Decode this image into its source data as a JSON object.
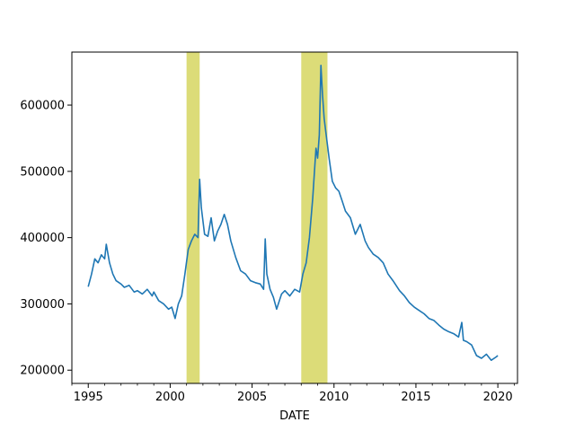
{
  "chart_data": {
    "type": "line",
    "title": "",
    "xlabel": "DATE",
    "ylabel": "",
    "xlim": [
      1994.0,
      2021.2
    ],
    "ylim": [
      180000,
      680000
    ],
    "grid": false,
    "legend": "none",
    "x_ticks": [
      1995,
      2000,
      2005,
      2010,
      2015,
      2020
    ],
    "x_tick_labels": [
      "1995",
      "2000",
      "2005",
      "2010",
      "2015",
      "2020"
    ],
    "x_minor_ticks": [
      1994,
      1996,
      1997,
      1998,
      1999,
      2001,
      2002,
      2003,
      2004,
      2006,
      2007,
      2008,
      2009,
      2011,
      2012,
      2013,
      2014,
      2016,
      2017,
      2018,
      2019,
      2021
    ],
    "y_ticks": [
      200000,
      300000,
      400000,
      500000,
      600000
    ],
    "y_tick_labels": [
      "200000",
      "300000",
      "400000",
      "500000",
      "600000"
    ],
    "line_color": "#1f77b4",
    "recession_color": "#dcdc78",
    "recession_bands": [
      {
        "start": 2001.0,
        "end": 2001.8
      },
      {
        "start": 2008.0,
        "end": 2009.6
      }
    ],
    "series": [
      {
        "x": [
          1995.0,
          1995.2,
          1995.4,
          1995.6,
          1995.8,
          1996.0,
          1996.1,
          1996.3,
          1996.5,
          1996.7,
          1997.0,
          1997.2,
          1997.5,
          1997.8,
          1998.0,
          1998.3,
          1998.6,
          1998.9,
          1999.0,
          1999.3,
          1999.6,
          1999.9,
          2000.1,
          2000.3,
          2000.5,
          2000.7,
          2000.9,
          2001.1,
          2001.3,
          2001.5,
          2001.7,
          2001.8,
          2001.9,
          2002.1,
          2002.3,
          2002.5,
          2002.7,
          2002.9,
          2003.1,
          2003.3,
          2003.5,
          2003.7,
          2004.0,
          2004.3,
          2004.6,
          2004.9,
          2005.2,
          2005.5,
          2005.7,
          2005.8,
          2005.9,
          2006.1,
          2006.3,
          2006.5,
          2006.8,
          2007.0,
          2007.3,
          2007.6,
          2007.9,
          2008.1,
          2008.3,
          2008.5,
          2008.7,
          2008.9,
          2009.0,
          2009.1,
          2009.2,
          2009.3,
          2009.4,
          2009.5,
          2009.7,
          2009.9,
          2010.1,
          2010.3,
          2010.5,
          2010.7,
          2011.0,
          2011.3,
          2011.6,
          2011.9,
          2012.1,
          2012.4,
          2012.7,
          2013.0,
          2013.3,
          2013.6,
          2014.0,
          2014.3,
          2014.6,
          2014.9,
          2015.2,
          2015.5,
          2015.8,
          2016.1,
          2016.4,
          2016.7,
          2017.0,
          2017.3,
          2017.6,
          2017.8,
          2017.9,
          2018.1,
          2018.4,
          2018.7,
          2019.0,
          2019.3,
          2019.6,
          2019.9,
          2020.0
        ],
        "y": [
          326000,
          345000,
          368000,
          362000,
          374000,
          368000,
          390000,
          362000,
          345000,
          335000,
          330000,
          325000,
          328000,
          318000,
          320000,
          315000,
          322000,
          312000,
          318000,
          305000,
          300000,
          292000,
          295000,
          278000,
          300000,
          312000,
          345000,
          382000,
          395000,
          405000,
          400000,
          488000,
          445000,
          405000,
          402000,
          430000,
          395000,
          410000,
          420000,
          435000,
          420000,
          395000,
          370000,
          350000,
          345000,
          335000,
          332000,
          330000,
          322000,
          398000,
          345000,
          322000,
          310000,
          292000,
          315000,
          320000,
          312000,
          322000,
          318000,
          345000,
          362000,
          400000,
          460000,
          535000,
          520000,
          555000,
          660000,
          615000,
          580000,
          560000,
          520000,
          485000,
          475000,
          470000,
          455000,
          440000,
          430000,
          405000,
          420000,
          395000,
          385000,
          375000,
          370000,
          362000,
          345000,
          335000,
          320000,
          312000,
          302000,
          295000,
          290000,
          285000,
          278000,
          275000,
          268000,
          262000,
          258000,
          255000,
          250000,
          272000,
          245000,
          243000,
          238000,
          222000,
          218000,
          224000,
          215000,
          220000,
          222000
        ]
      }
    ]
  }
}
